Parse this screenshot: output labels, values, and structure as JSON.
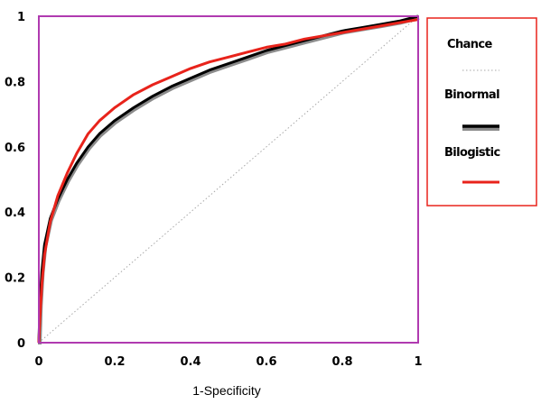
{
  "chart_data": {
    "type": "line",
    "title": "",
    "xlabel": "1-Specificity",
    "ylabel": "",
    "xlim": [
      0,
      1
    ],
    "ylim": [
      0,
      1
    ],
    "x_ticks": [
      "0",
      "0.2",
      "0.4",
      "0.6",
      "0.8",
      "1"
    ],
    "y_ticks": [
      "0",
      "0.2",
      "0.4",
      "0.6",
      "0.8",
      "1"
    ],
    "grid": false,
    "legend_position": "right",
    "series": [
      {
        "name": "Chance",
        "color": "#a8a8a8",
        "style": "dotted",
        "x": [
          0,
          1
        ],
        "y": [
          0,
          1
        ]
      },
      {
        "name": "Binormal",
        "color": "#000000",
        "shadow_color": "#8c8c8c",
        "style": "solid",
        "x": [
          0,
          0.003,
          0.008,
          0.015,
          0.03,
          0.05,
          0.075,
          0.1,
          0.13,
          0.16,
          0.2,
          0.25,
          0.3,
          0.35,
          0.4,
          0.45,
          0.5,
          0.55,
          0.6,
          0.65,
          0.7,
          0.75,
          0.8,
          0.85,
          0.9,
          0.95,
          1
        ],
        "y": [
          0,
          0.12,
          0.22,
          0.3,
          0.38,
          0.44,
          0.5,
          0.55,
          0.6,
          0.64,
          0.68,
          0.72,
          0.755,
          0.785,
          0.81,
          0.835,
          0.855,
          0.875,
          0.895,
          0.91,
          0.925,
          0.94,
          0.955,
          0.965,
          0.975,
          0.985,
          1
        ]
      },
      {
        "name": "Bilogistic",
        "color": "#e8231b",
        "style": "solid",
        "x": [
          0,
          0.003,
          0.008,
          0.015,
          0.03,
          0.05,
          0.075,
          0.1,
          0.13,
          0.16,
          0.2,
          0.25,
          0.3,
          0.35,
          0.4,
          0.45,
          0.5,
          0.55,
          0.6,
          0.65,
          0.7,
          0.75,
          0.8,
          0.85,
          0.9,
          0.95,
          1
        ],
        "y": [
          0,
          0.08,
          0.18,
          0.27,
          0.37,
          0.45,
          0.52,
          0.58,
          0.64,
          0.68,
          0.72,
          0.76,
          0.79,
          0.815,
          0.84,
          0.86,
          0.875,
          0.89,
          0.905,
          0.915,
          0.93,
          0.94,
          0.95,
          0.96,
          0.97,
          0.98,
          0.99
        ]
      }
    ],
    "colors": {
      "plot_border": "#b03ab0",
      "legend_border": "#e8231b"
    }
  }
}
